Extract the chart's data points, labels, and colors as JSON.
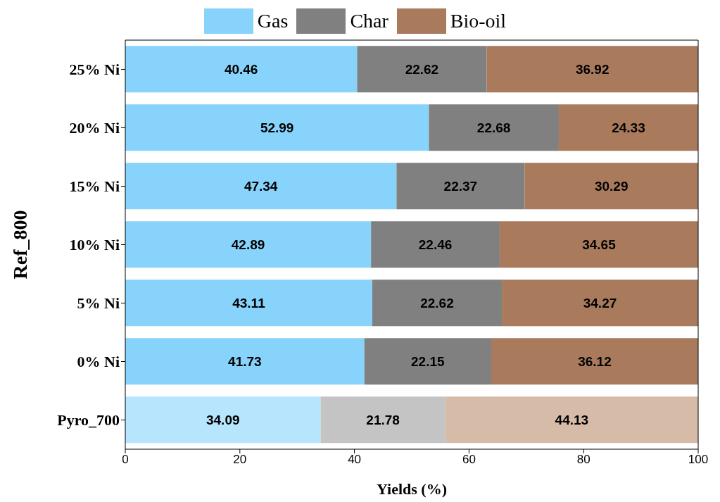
{
  "chart_data": {
    "type": "bar",
    "orientation": "horizontal",
    "stacked": true,
    "ylabel": "Ref_800",
    "xlabel": "Yields (%)",
    "categories": [
      "25% Ni",
      "20% Ni",
      "15% Ni",
      "10% Ni",
      "5% Ni",
      "0% Ni",
      "Pyro_700"
    ],
    "series": [
      {
        "name": "Gas",
        "color": "#87d3fb",
        "colors": [
          "#87d3fb",
          "#87d3fb",
          "#87d3fb",
          "#87d3fb",
          "#87d3fb",
          "#87d3fb",
          "#b7e5fd"
        ],
        "values": [
          40.46,
          52.99,
          47.34,
          42.89,
          43.11,
          41.73,
          34.09
        ]
      },
      {
        "name": "Char",
        "color": "#808080",
        "colors": [
          "#808080",
          "#808080",
          "#808080",
          "#808080",
          "#808080",
          "#808080",
          "#c4c4c4"
        ],
        "values": [
          22.62,
          22.68,
          22.37,
          22.46,
          22.62,
          22.15,
          21.78
        ]
      },
      {
        "name": "Bio-oil",
        "color": "#a97a5c",
        "colors": [
          "#a97a5c",
          "#a97a5c",
          "#a97a5c",
          "#a97a5c",
          "#a97a5c",
          "#a97a5c",
          "#d6bba8"
        ],
        "values": [
          36.92,
          24.33,
          30.29,
          34.65,
          34.27,
          36.12,
          44.13
        ]
      }
    ],
    "xlim": [
      0,
      100
    ],
    "xticks": [
      0,
      20,
      40,
      60,
      80,
      100
    ],
    "data_labels": true,
    "legend": "top",
    "grid": false
  }
}
